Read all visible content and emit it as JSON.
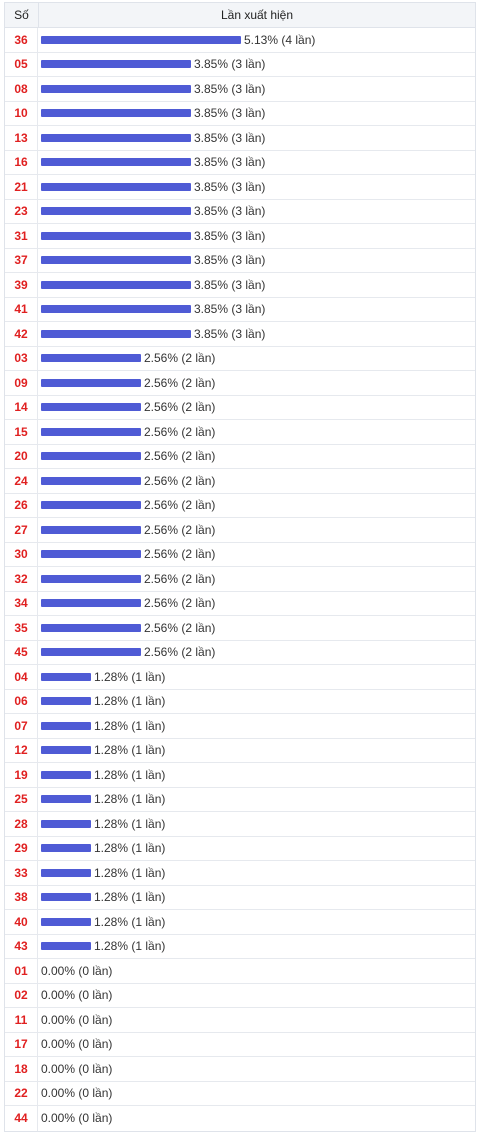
{
  "header": {
    "col_number": "Số",
    "col_frequency": "Lần xuất hiện"
  },
  "chart_data": {
    "type": "bar",
    "orientation": "horizontal",
    "bar_color": "#4f5bd5",
    "number_color": "#e02020",
    "rows": [
      {
        "number": "36",
        "percent": 5.13,
        "count": 4,
        "label": "5.13% (4 lần)"
      },
      {
        "number": "05",
        "percent": 3.85,
        "count": 3,
        "label": "3.85% (3 lần)"
      },
      {
        "number": "08",
        "percent": 3.85,
        "count": 3,
        "label": "3.85% (3 lần)"
      },
      {
        "number": "10",
        "percent": 3.85,
        "count": 3,
        "label": "3.85% (3 lần)"
      },
      {
        "number": "13",
        "percent": 3.85,
        "count": 3,
        "label": "3.85% (3 lần)"
      },
      {
        "number": "16",
        "percent": 3.85,
        "count": 3,
        "label": "3.85% (3 lần)"
      },
      {
        "number": "21",
        "percent": 3.85,
        "count": 3,
        "label": "3.85% (3 lần)"
      },
      {
        "number": "23",
        "percent": 3.85,
        "count": 3,
        "label": "3.85% (3 lần)"
      },
      {
        "number": "31",
        "percent": 3.85,
        "count": 3,
        "label": "3.85% (3 lần)"
      },
      {
        "number": "37",
        "percent": 3.85,
        "count": 3,
        "label": "3.85% (3 lần)"
      },
      {
        "number": "39",
        "percent": 3.85,
        "count": 3,
        "label": "3.85% (3 lần)"
      },
      {
        "number": "41",
        "percent": 3.85,
        "count": 3,
        "label": "3.85% (3 lần)"
      },
      {
        "number": "42",
        "percent": 3.85,
        "count": 3,
        "label": "3.85% (3 lần)"
      },
      {
        "number": "03",
        "percent": 2.56,
        "count": 2,
        "label": "2.56% (2 lần)"
      },
      {
        "number": "09",
        "percent": 2.56,
        "count": 2,
        "label": "2.56% (2 lần)"
      },
      {
        "number": "14",
        "percent": 2.56,
        "count": 2,
        "label": "2.56% (2 lần)"
      },
      {
        "number": "15",
        "percent": 2.56,
        "count": 2,
        "label": "2.56% (2 lần)"
      },
      {
        "number": "20",
        "percent": 2.56,
        "count": 2,
        "label": "2.56% (2 lần)"
      },
      {
        "number": "24",
        "percent": 2.56,
        "count": 2,
        "label": "2.56% (2 lần)"
      },
      {
        "number": "26",
        "percent": 2.56,
        "count": 2,
        "label": "2.56% (2 lần)"
      },
      {
        "number": "27",
        "percent": 2.56,
        "count": 2,
        "label": "2.56% (2 lần)"
      },
      {
        "number": "30",
        "percent": 2.56,
        "count": 2,
        "label": "2.56% (2 lần)"
      },
      {
        "number": "32",
        "percent": 2.56,
        "count": 2,
        "label": "2.56% (2 lần)"
      },
      {
        "number": "34",
        "percent": 2.56,
        "count": 2,
        "label": "2.56% (2 lần)"
      },
      {
        "number": "35",
        "percent": 2.56,
        "count": 2,
        "label": "2.56% (2 lần)"
      },
      {
        "number": "45",
        "percent": 2.56,
        "count": 2,
        "label": "2.56% (2 lần)"
      },
      {
        "number": "04",
        "percent": 1.28,
        "count": 1,
        "label": "1.28% (1 lần)"
      },
      {
        "number": "06",
        "percent": 1.28,
        "count": 1,
        "label": "1.28% (1 lần)"
      },
      {
        "number": "07",
        "percent": 1.28,
        "count": 1,
        "label": "1.28% (1 lần)"
      },
      {
        "number": "12",
        "percent": 1.28,
        "count": 1,
        "label": "1.28% (1 lần)"
      },
      {
        "number": "19",
        "percent": 1.28,
        "count": 1,
        "label": "1.28% (1 lần)"
      },
      {
        "number": "25",
        "percent": 1.28,
        "count": 1,
        "label": "1.28% (1 lần)"
      },
      {
        "number": "28",
        "percent": 1.28,
        "count": 1,
        "label": "1.28% (1 lần)"
      },
      {
        "number": "29",
        "percent": 1.28,
        "count": 1,
        "label": "1.28% (1 lần)"
      },
      {
        "number": "33",
        "percent": 1.28,
        "count": 1,
        "label": "1.28% (1 lần)"
      },
      {
        "number": "38",
        "percent": 1.28,
        "count": 1,
        "label": "1.28% (1 lần)"
      },
      {
        "number": "40",
        "percent": 1.28,
        "count": 1,
        "label": "1.28% (1 lần)"
      },
      {
        "number": "43",
        "percent": 1.28,
        "count": 1,
        "label": "1.28% (1 lần)"
      },
      {
        "number": "01",
        "percent": 0.0,
        "count": 0,
        "label": "0.00% (0 lần)"
      },
      {
        "number": "02",
        "percent": 0.0,
        "count": 0,
        "label": "0.00% (0 lần)"
      },
      {
        "number": "11",
        "percent": 0.0,
        "count": 0,
        "label": "0.00% (0 lần)"
      },
      {
        "number": "17",
        "percent": 0.0,
        "count": 0,
        "label": "0.00% (0 lần)"
      },
      {
        "number": "18",
        "percent": 0.0,
        "count": 0,
        "label": "0.00% (0 lần)"
      },
      {
        "number": "22",
        "percent": 0.0,
        "count": 0,
        "label": "0.00% (0 lần)"
      },
      {
        "number": "44",
        "percent": 0.0,
        "count": 0,
        "label": "0.00% (0 lần)"
      }
    ]
  }
}
